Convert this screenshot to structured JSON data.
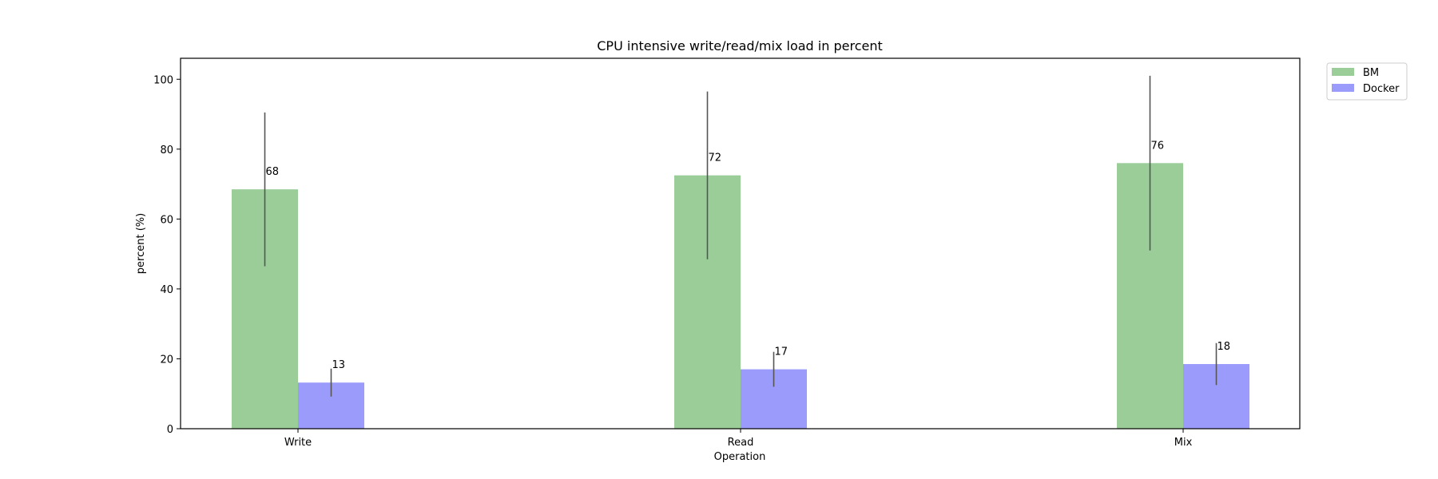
{
  "chart_data": {
    "type": "bar",
    "title": "CPU intensive write/read/mix load in percent",
    "xlabel": "Operation",
    "ylabel": "percent (%)",
    "categories": [
      "Write",
      "Read",
      "Mix"
    ],
    "ylim": [
      0,
      106
    ],
    "yticks": [
      0,
      20,
      40,
      60,
      80,
      100
    ],
    "grid": false,
    "legend": "outside-top-right",
    "series": [
      {
        "name": "BM",
        "color": "#9acd98",
        "values": [
          68.5,
          72.5,
          76
        ],
        "errors": [
          22,
          24,
          25
        ],
        "labels": [
          "68",
          "72",
          "76"
        ]
      },
      {
        "name": "Docker",
        "color": "#9b9bfb",
        "values": [
          13.2,
          17,
          18.5
        ],
        "errors": [
          4,
          5,
          6
        ],
        "labels": [
          "13",
          "17",
          "18"
        ]
      }
    ]
  }
}
